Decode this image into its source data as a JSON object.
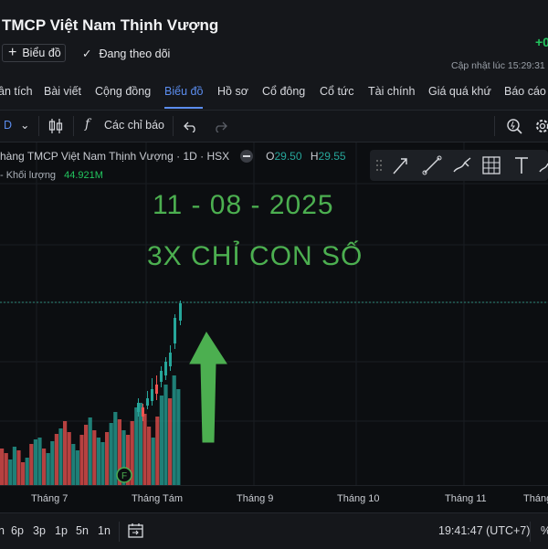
{
  "header": {
    "title": "TMCP Việt Nam Thịnh Vượng",
    "chart_button": "Biểu đồ",
    "follow_label": "Đang theo dõi",
    "price_change": "+0",
    "updated": "Cập nhật lúc  15:29:31"
  },
  "tabs": [
    {
      "label": "ân tích"
    },
    {
      "label": "Bài viết"
    },
    {
      "label": "Cộng đồng"
    },
    {
      "label": "Biểu đồ",
      "active": true
    },
    {
      "label": "Hồ sơ"
    },
    {
      "label": "Cổ đông"
    },
    {
      "label": "Cổ tức"
    },
    {
      "label": "Tài chính"
    },
    {
      "label": "Giá quá khứ"
    },
    {
      "label": "Báo cáo"
    }
  ],
  "toolbar": {
    "interval": "D",
    "indicators_label": "Các chỉ báo",
    "fx_symbol": "f"
  },
  "legend": {
    "symbol_line": "hàng TMCP Việt Nam Thịnh Vượng · 1D · HSX",
    "open_key": "O",
    "open_value": "29.50",
    "high_key": "H",
    "high_value": "29.55",
    "volume_label": "- Khối lượng",
    "volume_value": "44.921M"
  },
  "annotation": {
    "date": "11 - 08 - 2025",
    "text": "3X CHỈ CON SỐ",
    "color": "#4caf50"
  },
  "event_marker": "F",
  "xaxis": {
    "labels": [
      "Tháng 7",
      "Tháng Tám",
      "Tháng 9",
      "Tháng 10",
      "Tháng 11",
      "Tháng"
    ]
  },
  "bottombar": {
    "ranges": [
      "6p",
      "3p",
      "1p",
      "5n",
      "1n"
    ],
    "clock": "19:41:47 (UTC+7)"
  },
  "colors": {
    "up": "#26a69a",
    "down": "#ef5350",
    "accent": "#5b8def",
    "arrow": "#4caf50"
  }
}
